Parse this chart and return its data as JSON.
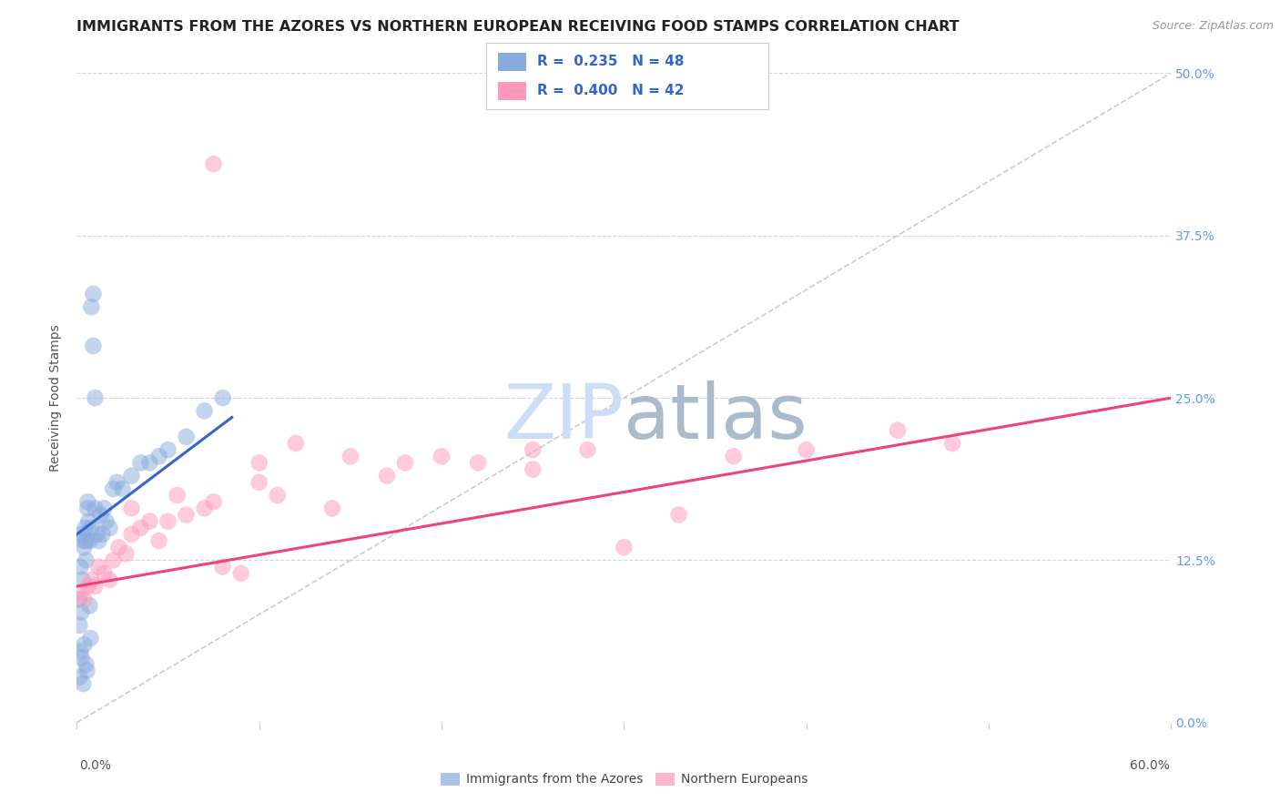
{
  "title": "IMMIGRANTS FROM THE AZORES VS NORTHERN EUROPEAN RECEIVING FOOD STAMPS CORRELATION CHART",
  "source": "Source: ZipAtlas.com",
  "ylabel": "Receiving Food Stamps",
  "ytick_values": [
    0.0,
    12.5,
    25.0,
    37.5,
    50.0
  ],
  "xlim": [
    0.0,
    60.0
  ],
  "ylim": [
    0.0,
    50.0
  ],
  "blue_color": "#88AADD",
  "pink_color": "#FF99BB",
  "blue_line_color": "#3366CC",
  "pink_line_color": "#EE4477",
  "watermark_zip": "ZIP",
  "watermark_atlas": "atlas",
  "watermark_color_zip": "#CCDDF0",
  "watermark_color_atlas": "#AABBCC",
  "legend_label1": "Immigrants from the Azores",
  "legend_label2": "Northern Europeans",
  "azores_x": [
    0.1,
    0.15,
    0.2,
    0.2,
    0.25,
    0.3,
    0.3,
    0.35,
    0.4,
    0.4,
    0.45,
    0.5,
    0.5,
    0.5,
    0.6,
    0.6,
    0.65,
    0.7,
    0.7,
    0.8,
    0.8,
    0.9,
    0.9,
    1.0,
    1.0,
    1.1,
    1.2,
    1.3,
    1.4,
    1.5,
    1.6,
    1.8,
    2.0,
    2.2,
    2.5,
    3.0,
    3.5,
    4.0,
    4.5,
    5.0,
    6.0,
    7.0,
    8.0,
    0.15,
    0.25,
    0.35,
    0.55,
    0.75
  ],
  "azores_y": [
    9.5,
    7.5,
    12.0,
    5.5,
    8.5,
    14.5,
    11.0,
    14.0,
    13.5,
    6.0,
    15.0,
    14.0,
    12.5,
    4.5,
    17.0,
    16.5,
    15.5,
    14.0,
    9.0,
    15.0,
    32.0,
    33.0,
    29.0,
    16.5,
    25.0,
    14.5,
    14.0,
    16.0,
    14.5,
    16.5,
    15.5,
    15.0,
    18.0,
    18.5,
    18.0,
    19.0,
    20.0,
    20.0,
    20.5,
    21.0,
    22.0,
    24.0,
    25.0,
    3.5,
    5.0,
    3.0,
    4.0,
    6.5
  ],
  "northern_x": [
    0.2,
    0.4,
    0.6,
    0.8,
    1.0,
    1.2,
    1.5,
    1.8,
    2.0,
    2.3,
    2.7,
    3.0,
    3.5,
    4.0,
    4.5,
    5.0,
    6.0,
    7.0,
    8.0,
    9.0,
    10.0,
    11.0,
    12.0,
    14.0,
    15.0,
    17.0,
    20.0,
    22.0,
    25.0,
    28.0,
    30.0,
    33.0,
    36.0,
    40.0,
    45.0,
    48.0,
    3.0,
    5.5,
    7.5,
    10.0,
    18.0,
    25.0
  ],
  "northern_y": [
    10.0,
    9.5,
    10.5,
    11.0,
    10.5,
    12.0,
    11.5,
    11.0,
    12.5,
    13.5,
    13.0,
    14.5,
    15.0,
    15.5,
    14.0,
    15.5,
    16.0,
    16.5,
    12.0,
    11.5,
    18.5,
    17.5,
    21.5,
    16.5,
    20.5,
    19.0,
    20.5,
    20.0,
    19.5,
    21.0,
    13.5,
    16.0,
    20.5,
    21.0,
    22.5,
    21.5,
    16.5,
    17.5,
    17.0,
    20.0,
    20.0,
    21.0
  ],
  "northern_outlier_x": 7.5,
  "northern_outlier_y": 43.0,
  "background_color": "#FFFFFF",
  "grid_color": "#CCCCCC",
  "title_fontsize": 11.5,
  "axis_label_fontsize": 10,
  "tick_fontsize": 10,
  "blue_line_x": [
    0.0,
    8.5
  ],
  "blue_line_y": [
    14.5,
    23.5
  ],
  "pink_line_x": [
    0.0,
    60.0
  ],
  "pink_line_y": [
    10.5,
    25.0
  ]
}
